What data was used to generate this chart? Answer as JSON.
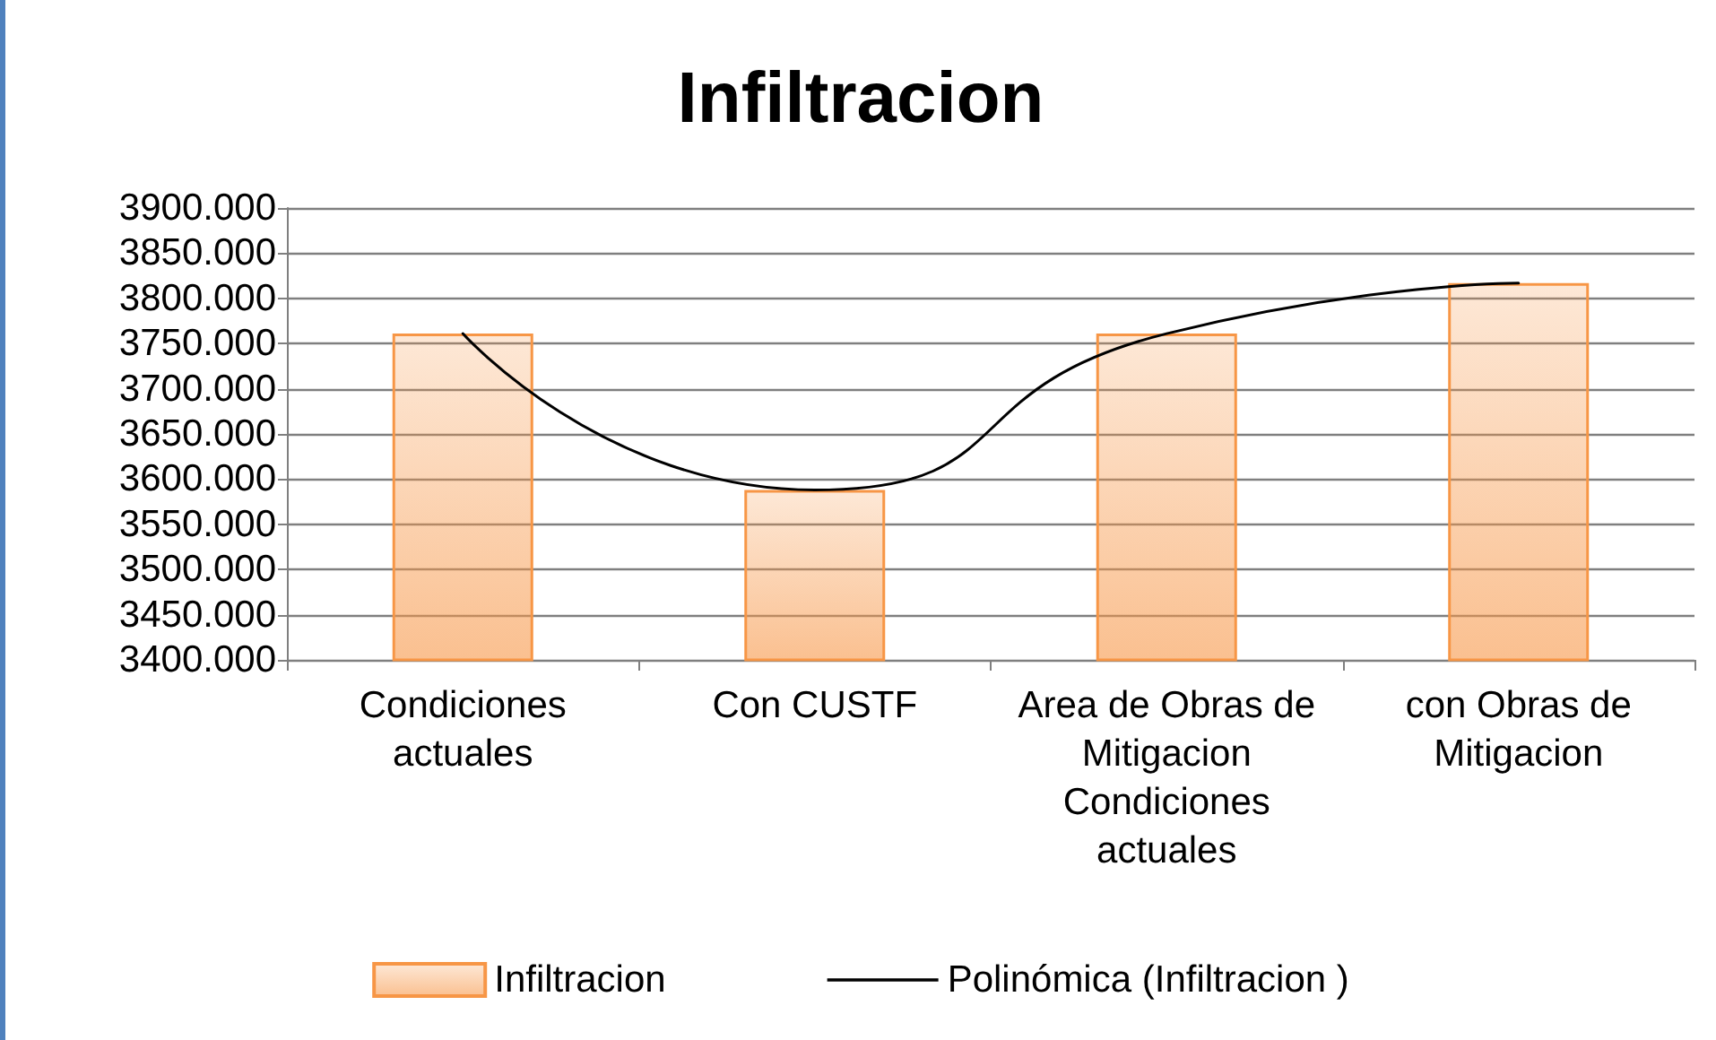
{
  "chart_data": {
    "type": "bar",
    "title": "Infiltracion",
    "categories": [
      "Condiciones\nactuales",
      "Con CUSTF",
      "Area de Obras de\nMitigacion\nCondiciones\nactuales",
      "con Obras de\nMitigacion"
    ],
    "series": [
      {
        "name": "Infiltracion",
        "color": "#f79646",
        "values": [
          3761,
          3588,
          3761,
          3817
        ]
      },
      {
        "name": "Polinómica (Infiltracion )",
        "type": "line",
        "color": "#000000",
        "values": [
          3761,
          3588,
          3761,
          3817
        ]
      }
    ],
    "ylim": [
      3400,
      3900
    ],
    "yticks": [
      {
        "value": 3400,
        "label": "3400.000"
      },
      {
        "value": 3450,
        "label": "3450.000"
      },
      {
        "value": 3500,
        "label": "3500.000"
      },
      {
        "value": 3550,
        "label": "3550.000"
      },
      {
        "value": 3600,
        "label": "3600.000"
      },
      {
        "value": 3650,
        "label": "3650.000"
      },
      {
        "value": 3700,
        "label": "3700.000"
      },
      {
        "value": 3750,
        "label": "3750.000"
      },
      {
        "value": 3800,
        "label": "3800.000"
      },
      {
        "value": 3850,
        "label": "3850.000"
      },
      {
        "value": 3900,
        "label": "3900.000"
      }
    ],
    "grid": "y",
    "legend": "bottom",
    "marker": "none",
    "line_style": "solid"
  }
}
